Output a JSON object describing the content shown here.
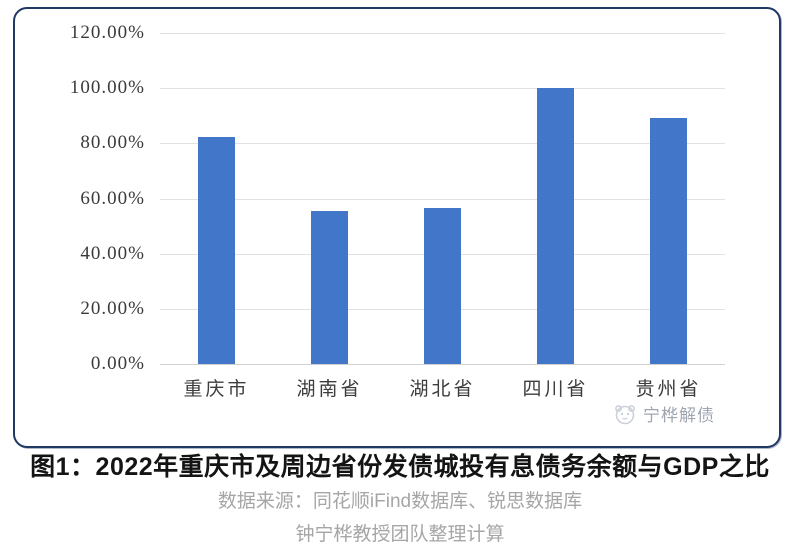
{
  "figure": {
    "frame_border_color": "#1f3864",
    "watermark": {
      "text": "宁桦解债",
      "icon": "panda-logo-icon",
      "color": "#9fa6b2"
    }
  },
  "caption": {
    "title": "图1：2022年重庆市及周边省份发债城投有息债务余额与GDP之比",
    "source": "数据来源：同花顺iFind数据库、锐思数据库",
    "credit": "钟宁桦教授团队整理计算"
  },
  "chart_data": {
    "type": "bar",
    "title": "",
    "xlabel": "",
    "ylabel": "",
    "categories": [
      "重庆市",
      "湖南省",
      "湖北省",
      "四川省",
      "贵州省"
    ],
    "values": [
      82.2,
      55.5,
      56.6,
      100.2,
      89.3
    ],
    "unit": "%",
    "ylim": [
      0,
      120
    ],
    "ytick_step": 20,
    "yticks": [
      0,
      20,
      40,
      60,
      80,
      100,
      120
    ],
    "ytick_labels": [
      "0.00%",
      "20.00%",
      "40.00%",
      "60.00%",
      "80.00%",
      "100.00%",
      "120.00%"
    ],
    "grid": true,
    "legend": "none",
    "bar_color": "#4176c9",
    "gridline_color": "#e2e2e2",
    "axis_line_color": "#d2d2d2",
    "tick_label_color": "#3a3a3a",
    "category_label_color": "#3d3d3d"
  }
}
